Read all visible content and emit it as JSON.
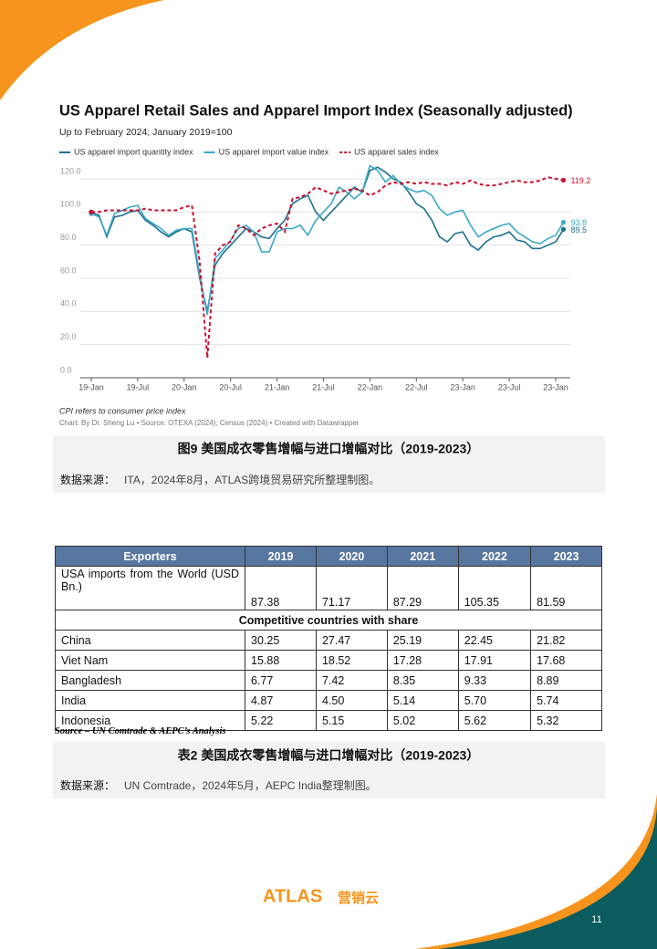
{
  "chart_data": {
    "type": "line",
    "title": "US Apparel Retail Sales and Apparel Import Index (Seasonally adjusted)",
    "subtitle": "Up to February 2024; January 2019=100",
    "categories": [
      "19-Jan",
      null,
      null,
      null,
      null,
      null,
      "19-Jul",
      null,
      null,
      null,
      null,
      null,
      "20-Jan",
      null,
      null,
      null,
      null,
      null,
      "20-Jul",
      null,
      null,
      null,
      null,
      null,
      "21-Jan",
      null,
      null,
      null,
      null,
      null,
      "21-Jul",
      null,
      null,
      null,
      null,
      null,
      "22-Jan",
      null,
      null,
      null,
      null,
      null,
      "22-Jul",
      null,
      null,
      null,
      null,
      null,
      "23-Jan",
      null,
      null,
      null,
      null,
      null,
      "23-Jul",
      null,
      null,
      null,
      null,
      null,
      "23-Jan",
      null
    ],
    "series": [
      {
        "name": "US apparel import quantity index",
        "color": "#1e6f8c",
        "dash": false,
        "values": [
          100,
          98,
          85,
          97,
          98,
          100,
          101,
          95,
          92,
          88,
          85,
          88,
          90,
          88,
          60,
          40,
          68,
          75,
          80,
          85,
          90,
          88,
          85,
          84,
          90,
          95,
          105,
          108,
          110,
          100,
          95,
          100,
          105,
          110,
          115,
          112,
          125,
          127,
          124,
          120,
          118,
          112,
          105,
          102,
          95,
          85,
          82,
          87,
          88,
          80,
          77,
          82,
          85,
          86,
          88,
          83,
          82,
          78,
          78,
          80,
          82,
          89.5
        ]
      },
      {
        "name": "US apparel import value index",
        "color": "#3aa9c8",
        "dash": false,
        "values": [
          99,
          97,
          86,
          99,
          101,
          103,
          104,
          96,
          93,
          90,
          86,
          89,
          90,
          90,
          62,
          38,
          72,
          77,
          83,
          90,
          92,
          88,
          76,
          76,
          88,
          90,
          90,
          92,
          86,
          95,
          100,
          105,
          115,
          112,
          108,
          112,
          128,
          125,
          118,
          122,
          117,
          114,
          112,
          113,
          110,
          102,
          98,
          100,
          101,
          92,
          85,
          88,
          90,
          92,
          93,
          88,
          85,
          82,
          81,
          84,
          86,
          93.8
        ]
      },
      {
        "name": "US apparel sales index",
        "color": "#c8102e",
        "dash": true,
        "values": [
          100,
          100,
          101,
          101,
          101,
          101,
          101,
          102,
          101,
          101,
          101,
          101,
          103,
          104,
          70,
          12,
          75,
          80,
          82,
          92,
          90,
          86,
          90,
          92,
          93,
          88,
          108,
          109,
          111,
          115,
          113,
          111,
          112,
          113,
          114,
          113,
          110,
          112,
          116,
          118,
          117,
          118,
          117,
          118,
          117,
          117,
          116,
          118,
          117,
          119,
          117,
          116,
          116,
          117,
          118,
          119,
          118,
          118,
          119,
          121,
          120,
          119.2
        ]
      }
    ],
    "ylim": [
      0,
      120
    ],
    "yticks": [
      {
        "value": 0,
        "label": "0.0"
      },
      {
        "value": 20,
        "label": "20.0"
      },
      {
        "value": 40,
        "label": "40.0"
      },
      {
        "value": 60,
        "label": "60.0"
      },
      {
        "value": 80,
        "label": "80.0"
      },
      {
        "value": 100,
        "label": "100.0"
      },
      {
        "value": 120,
        "label": "120.0"
      }
    ],
    "grid": true,
    "note": "CPI refers to consumer price index",
    "credit": "Chart: By Dr. Sheng Lu • Source: OTEXA (2024); Census (2024) • Created with Datawrapper"
  },
  "figure_caption": {
    "title": "图9 美国成衣零售增幅与进口增幅对比（2019-2023）",
    "source_label": "数据来源：",
    "source": "ITA，2024年8月，ATLAS跨境贸易研究所整理制图。"
  },
  "table": {
    "columns": [
      "Exporters",
      "2019",
      "2020",
      "2021",
      "2022",
      "2023"
    ],
    "total": [
      "USA imports from the World (USD Bn.)",
      "87.38",
      "71.17",
      "87.29",
      "105.35",
      "81.59"
    ],
    "section": "Competitive countries with share",
    "rows": [
      [
        "China",
        "30.25",
        "27.47",
        "25.19",
        "22.45",
        "21.82"
      ],
      [
        "Viet Nam",
        "15.88",
        "18.52",
        "17.28",
        "17.91",
        "17.68"
      ],
      [
        "Bangladesh",
        "6.77",
        "7.42",
        "8.35",
        "9.33",
        "8.89"
      ],
      [
        "India",
        "4.87",
        "4.50",
        "5.14",
        "5.70",
        "5.74"
      ],
      [
        "Indonesia",
        "5.22",
        "5.15",
        "5.02",
        "5.62",
        "5.32"
      ]
    ],
    "source": "Source – UN Comtrade & AEPC’s Analysis"
  },
  "table_caption": {
    "title": "表2 美国成衣零售增幅与进口增幅对比（2019-2023）",
    "source_label": "数据来源：",
    "source": "UN Comtrade，2024年5月，AEPC India整理制图。"
  },
  "footer": {
    "brand": "ATLAS",
    "brand_cn": "营销云",
    "page": "11"
  }
}
